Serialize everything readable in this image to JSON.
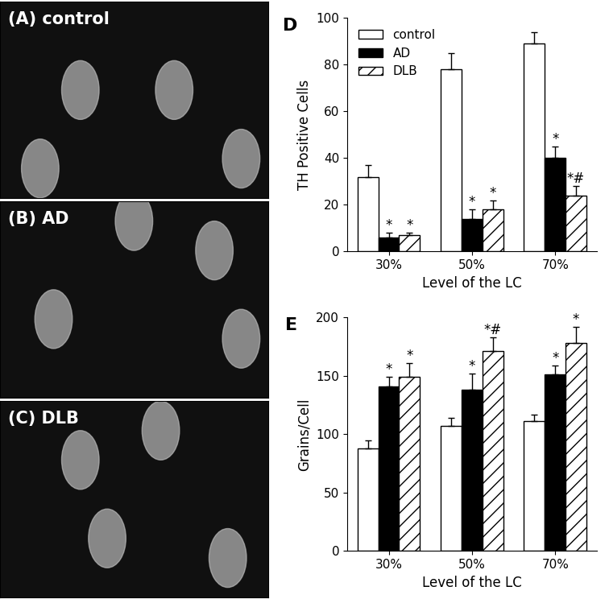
{
  "image_panels": [
    "(A) control",
    "(B) AD",
    "(C) DLB"
  ],
  "chart_data": [
    {
      "type": "bar",
      "title": "D",
      "x_label": "Level of the LC",
      "y_label": "TH Positive Cells",
      "categories": [
        "30%",
        "50%",
        "70%"
      ],
      "ylim": [
        0,
        100
      ],
      "yticks": [
        0,
        20,
        40,
        60,
        80,
        100
      ],
      "legend": "upper left",
      "series": [
        {
          "name": "control",
          "color": "#ffffff",
          "values": [
            32,
            78,
            89
          ],
          "errors": [
            5,
            7,
            5
          ],
          "annotations": [
            null,
            null,
            null
          ]
        },
        {
          "name": "AD",
          "color": "#000000",
          "values": [
            6,
            14,
            40
          ],
          "errors": [
            2,
            4,
            5
          ],
          "annotations": [
            "*",
            "*",
            "*"
          ]
        },
        {
          "name": "DLB",
          "color": "#ffffff",
          "values": [
            7,
            18,
            24
          ],
          "errors": [
            1,
            4,
            4
          ],
          "annotations": [
            "*",
            "*",
            "*#"
          ]
        }
      ]
    },
    {
      "type": "bar",
      "title": "E",
      "x_label": "Level of the LC",
      "y_label": "Grains/Cell",
      "categories": [
        "30%",
        "50%",
        "70%"
      ],
      "ylim": [
        0,
        200
      ],
      "yticks": [
        0,
        50,
        100,
        150,
        200
      ],
      "series": [
        {
          "color": "#ffffff",
          "values": [
            88,
            107,
            111
          ],
          "errors": [
            7,
            7,
            6
          ],
          "annotations": [
            null,
            null,
            null
          ]
        },
        {
          "color": "#000000",
          "values": [
            141,
            138,
            151
          ],
          "errors": [
            8,
            14,
            8
          ],
          "annotations": [
            "*",
            "*",
            "*"
          ]
        },
        {
          "color": "#ffffff",
          "values": [
            149,
            171,
            178
          ],
          "errors": [
            12,
            12,
            14
          ],
          "annotations": [
            "*",
            "*#",
            "*"
          ]
        }
      ]
    }
  ]
}
